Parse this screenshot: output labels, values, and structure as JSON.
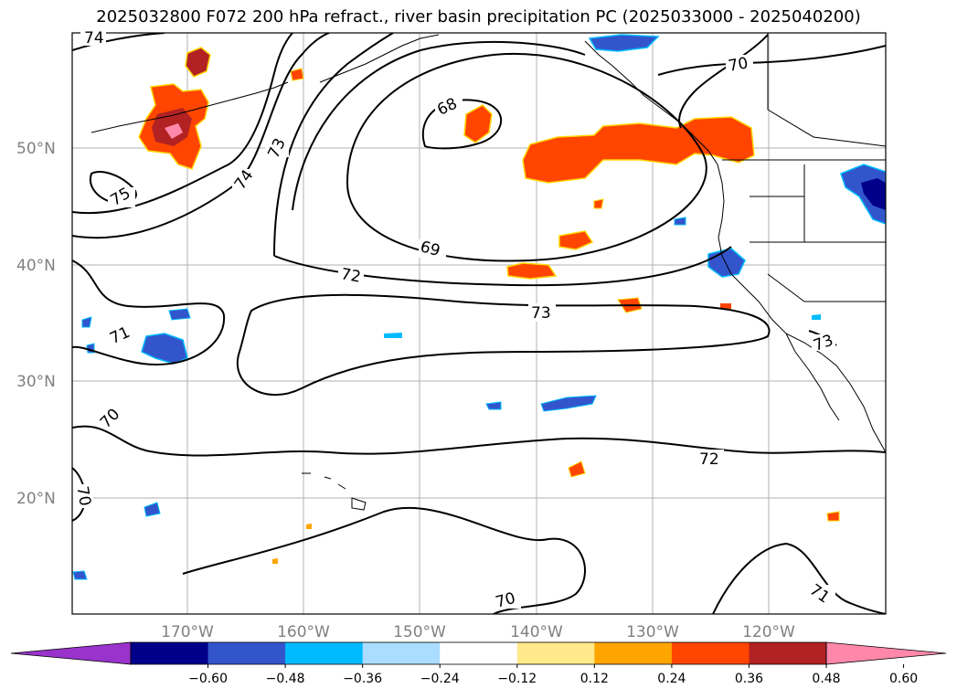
{
  "title": "2025032800 F072 200 hPa refract., river basin precipitation PC (2025033000 - 2025040200)",
  "axes": {
    "lat_labels": [
      "50°N",
      "40°N",
      "30°N",
      "20°N"
    ],
    "lon_labels": [
      "170°W",
      "160°W",
      "150°W",
      "140°W",
      "130°W",
      "120°W"
    ]
  },
  "contour_labels": [
    "74",
    "75",
    "74",
    "73",
    "68",
    "70",
    "69",
    "72",
    "73",
    "71",
    "70",
    "70",
    "72",
    "70",
    "71",
    "73"
  ],
  "colorbar": {
    "colors": [
      "#9933cc",
      "#00008b",
      "#3355cc",
      "#00bbff",
      "#aaddff",
      "#ffffff",
      "#ffe98a",
      "#ffa500",
      "#ff4500",
      "#b22222",
      "#ff88aa"
    ],
    "tick_labels": [
      "−0.60",
      "−0.48",
      "−0.36",
      "−0.24",
      "−0.12",
      "0.12",
      "0.24",
      "0.36",
      "0.48",
      "0.60"
    ]
  },
  "colors": {
    "gridline": "#b0b0b0",
    "coast": "#000000",
    "contour": "#000000"
  }
}
